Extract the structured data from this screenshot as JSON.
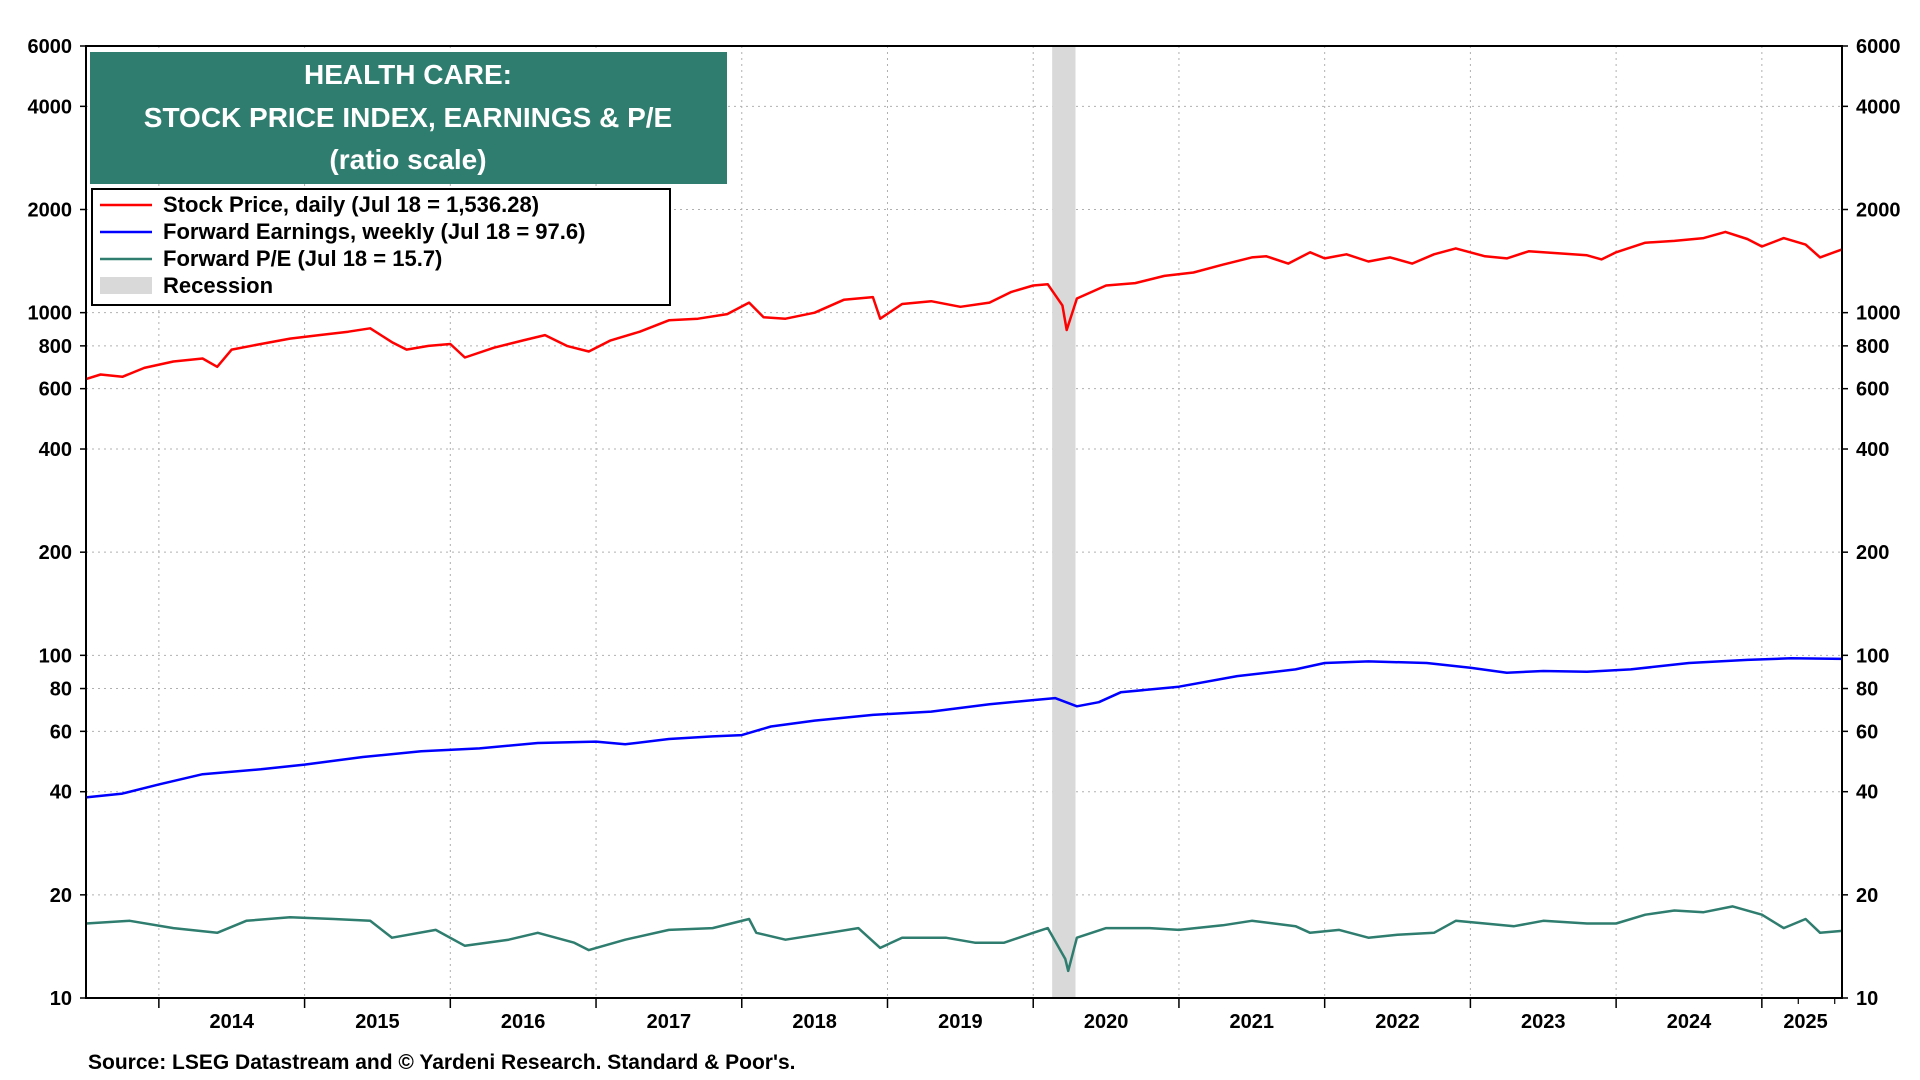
{
  "chart_data": {
    "type": "line",
    "title_lines": [
      "HEALTH CARE:",
      "STOCK PRICE INDEX, EARNINGS & P/E",
      "(ratio scale)"
    ],
    "source": "Source: LSEG Datastream and © Yardeni Research. Standard & Poor's.",
    "y_scale": "log",
    "ylim": [
      10,
      6000
    ],
    "y_ticks": [
      10,
      20,
      40,
      60,
      80,
      100,
      200,
      400,
      600,
      800,
      1000,
      2000,
      4000,
      6000
    ],
    "x_labels": [
      "2014",
      "2015",
      "2016",
      "2017",
      "2018",
      "2019",
      "2020",
      "2021",
      "2022",
      "2023",
      "2024",
      "2025"
    ],
    "xlim": [
      2013.5,
      2025.55
    ],
    "grid": true,
    "legend_placement": "top-left",
    "recession": {
      "label": "Recession",
      "start": 2020.13,
      "end": 2020.29,
      "color": "#d9d9d9"
    },
    "series": [
      {
        "name": "Stock Price, daily (Jul 18 = 1,536.28)",
        "color": "#ff0000",
        "points": [
          [
            2013.5,
            640
          ],
          [
            2013.6,
            660
          ],
          [
            2013.75,
            650
          ],
          [
            2013.9,
            690
          ],
          [
            2014.1,
            720
          ],
          [
            2014.3,
            735
          ],
          [
            2014.4,
            695
          ],
          [
            2014.5,
            780
          ],
          [
            2014.7,
            810
          ],
          [
            2014.9,
            840
          ],
          [
            2015.1,
            860
          ],
          [
            2015.3,
            880
          ],
          [
            2015.45,
            900
          ],
          [
            2015.6,
            820
          ],
          [
            2015.7,
            780
          ],
          [
            2015.85,
            800
          ],
          [
            2016.0,
            810
          ],
          [
            2016.1,
            740
          ],
          [
            2016.3,
            790
          ],
          [
            2016.5,
            830
          ],
          [
            2016.65,
            860
          ],
          [
            2016.8,
            800
          ],
          [
            2016.95,
            770
          ],
          [
            2017.1,
            830
          ],
          [
            2017.3,
            880
          ],
          [
            2017.5,
            950
          ],
          [
            2017.7,
            960
          ],
          [
            2017.9,
            990
          ],
          [
            2018.05,
            1070
          ],
          [
            2018.15,
            970
          ],
          [
            2018.3,
            960
          ],
          [
            2018.5,
            1000
          ],
          [
            2018.7,
            1090
          ],
          [
            2018.9,
            1110
          ],
          [
            2018.95,
            960
          ],
          [
            2019.1,
            1060
          ],
          [
            2019.3,
            1080
          ],
          [
            2019.5,
            1040
          ],
          [
            2019.7,
            1070
          ],
          [
            2019.85,
            1150
          ],
          [
            2020.0,
            1200
          ],
          [
            2020.1,
            1210
          ],
          [
            2020.2,
            1050
          ],
          [
            2020.23,
            890
          ],
          [
            2020.3,
            1100
          ],
          [
            2020.5,
            1200
          ],
          [
            2020.7,
            1220
          ],
          [
            2020.9,
            1280
          ],
          [
            2021.1,
            1310
          ],
          [
            2021.3,
            1380
          ],
          [
            2021.5,
            1450
          ],
          [
            2021.6,
            1460
          ],
          [
            2021.75,
            1390
          ],
          [
            2021.9,
            1500
          ],
          [
            2022.0,
            1440
          ],
          [
            2022.15,
            1480
          ],
          [
            2022.3,
            1410
          ],
          [
            2022.45,
            1450
          ],
          [
            2022.6,
            1390
          ],
          [
            2022.75,
            1480
          ],
          [
            2022.9,
            1540
          ],
          [
            2023.1,
            1460
          ],
          [
            2023.25,
            1440
          ],
          [
            2023.4,
            1510
          ],
          [
            2023.6,
            1490
          ],
          [
            2023.8,
            1470
          ],
          [
            2023.9,
            1430
          ],
          [
            2024.0,
            1500
          ],
          [
            2024.2,
            1600
          ],
          [
            2024.4,
            1620
          ],
          [
            2024.6,
            1650
          ],
          [
            2024.75,
            1720
          ],
          [
            2024.9,
            1640
          ],
          [
            2025.0,
            1560
          ],
          [
            2025.15,
            1650
          ],
          [
            2025.3,
            1580
          ],
          [
            2025.4,
            1450
          ],
          [
            2025.55,
            1530
          ]
        ]
      },
      {
        "name": "Forward Earnings, weekly (Jul 18 = 97.6)",
        "color": "#0000ff",
        "points": [
          [
            2013.5,
            38.5
          ],
          [
            2013.75,
            39.5
          ],
          [
            2014.0,
            42
          ],
          [
            2014.3,
            45
          ],
          [
            2014.7,
            46.5
          ],
          [
            2015.0,
            48
          ],
          [
            2015.4,
            50.5
          ],
          [
            2015.8,
            52.5
          ],
          [
            2016.2,
            53.5
          ],
          [
            2016.6,
            55.5
          ],
          [
            2017.0,
            56
          ],
          [
            2017.2,
            55
          ],
          [
            2017.5,
            57
          ],
          [
            2017.8,
            58
          ],
          [
            2018.0,
            58.5
          ],
          [
            2018.2,
            62
          ],
          [
            2018.5,
            64.5
          ],
          [
            2018.9,
            67
          ],
          [
            2019.3,
            68.5
          ],
          [
            2019.7,
            72
          ],
          [
            2020.0,
            74
          ],
          [
            2020.15,
            75
          ],
          [
            2020.3,
            71
          ],
          [
            2020.45,
            73
          ],
          [
            2020.6,
            78
          ],
          [
            2021.0,
            81
          ],
          [
            2021.4,
            87
          ],
          [
            2021.8,
            91
          ],
          [
            2022.0,
            95
          ],
          [
            2022.3,
            96
          ],
          [
            2022.7,
            95
          ],
          [
            2023.0,
            92
          ],
          [
            2023.25,
            89
          ],
          [
            2023.5,
            90
          ],
          [
            2023.8,
            89.5
          ],
          [
            2024.1,
            91
          ],
          [
            2024.5,
            95
          ],
          [
            2024.9,
            97
          ],
          [
            2025.2,
            98
          ],
          [
            2025.55,
            97.6
          ]
        ]
      },
      {
        "name": "Forward P/E (Jul 18 = 15.7)",
        "color": "#2e7d6e",
        "points": [
          [
            2013.5,
            16.5
          ],
          [
            2013.8,
            16.8
          ],
          [
            2014.1,
            16
          ],
          [
            2014.4,
            15.5
          ],
          [
            2014.6,
            16.8
          ],
          [
            2014.9,
            17.2
          ],
          [
            2015.2,
            17
          ],
          [
            2015.45,
            16.8
          ],
          [
            2015.6,
            15
          ],
          [
            2015.9,
            15.8
          ],
          [
            2016.1,
            14.2
          ],
          [
            2016.4,
            14.8
          ],
          [
            2016.6,
            15.5
          ],
          [
            2016.85,
            14.5
          ],
          [
            2016.95,
            13.8
          ],
          [
            2017.2,
            14.8
          ],
          [
            2017.5,
            15.8
          ],
          [
            2017.8,
            16
          ],
          [
            2018.05,
            17
          ],
          [
            2018.1,
            15.5
          ],
          [
            2018.3,
            14.8
          ],
          [
            2018.6,
            15.5
          ],
          [
            2018.8,
            16
          ],
          [
            2018.95,
            14
          ],
          [
            2019.1,
            15
          ],
          [
            2019.4,
            15
          ],
          [
            2019.6,
            14.5
          ],
          [
            2019.8,
            14.5
          ],
          [
            2020.0,
            15.5
          ],
          [
            2020.1,
            16
          ],
          [
            2020.22,
            13
          ],
          [
            2020.24,
            12
          ],
          [
            2020.3,
            15
          ],
          [
            2020.5,
            16
          ],
          [
            2020.8,
            16
          ],
          [
            2021.0,
            15.8
          ],
          [
            2021.3,
            16.3
          ],
          [
            2021.5,
            16.8
          ],
          [
            2021.8,
            16.2
          ],
          [
            2021.9,
            15.5
          ],
          [
            2022.1,
            15.8
          ],
          [
            2022.3,
            15
          ],
          [
            2022.5,
            15.3
          ],
          [
            2022.75,
            15.5
          ],
          [
            2022.9,
            16.8
          ],
          [
            2023.1,
            16.5
          ],
          [
            2023.3,
            16.2
          ],
          [
            2023.5,
            16.8
          ],
          [
            2023.8,
            16.5
          ],
          [
            2024.0,
            16.5
          ],
          [
            2024.2,
            17.5
          ],
          [
            2024.4,
            18
          ],
          [
            2024.6,
            17.8
          ],
          [
            2024.8,
            18.5
          ],
          [
            2025.0,
            17.5
          ],
          [
            2025.15,
            16
          ],
          [
            2025.3,
            17
          ],
          [
            2025.4,
            15.5
          ],
          [
            2025.55,
            15.7
          ]
        ]
      }
    ]
  }
}
